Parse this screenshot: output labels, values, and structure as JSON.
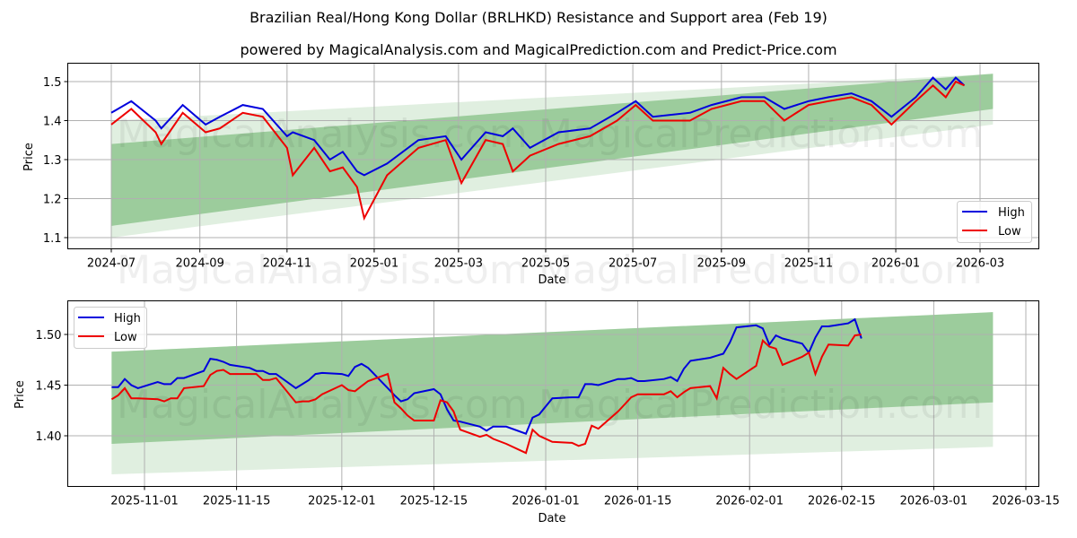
{
  "header": {
    "title": "Brazilian Real/Hong Kong Dollar (BRLHKD) Resistance and Support area (Feb 19)",
    "subtitle": "powered by MagicalAnalysis.com and MagicalPrediction.com and Predict-Price.com"
  },
  "watermarks": [
    "MagicalAnalysis.com",
    "MagicalPrediction.com"
  ],
  "colors": {
    "high": "#0000dd",
    "low": "#ee0000",
    "band_dark": "#8fc58f",
    "band_light": "#cfe6cf",
    "grid": "#b0b0b0"
  },
  "chart_data": [
    {
      "type": "line",
      "title": "",
      "xlabel": "Date",
      "ylabel": "Price",
      "ylim": [
        1.07,
        1.545
      ],
      "grid": true,
      "legend_position": "lower right",
      "x_ticks": [
        "2024-07",
        "2024-09",
        "2024-11",
        "2025-01",
        "2025-03",
        "2025-05",
        "2025-07",
        "2025-09",
        "2025-11",
        "2026-01",
        "2026-03"
      ],
      "y_ticks": [
        "1.1",
        "1.2",
        "1.3",
        "1.4",
        "1.5"
      ],
      "legend": [
        "High",
        "Low"
      ],
      "x": [
        "2024-07-01",
        "2024-07-15",
        "2024-08-01",
        "2024-08-05",
        "2024-08-20",
        "2024-09-05",
        "2024-09-15",
        "2024-10-01",
        "2024-10-15",
        "2024-11-01",
        "2024-11-05",
        "2024-11-20",
        "2024-12-01",
        "2024-12-10",
        "2024-12-20",
        "2024-12-25",
        "2025-01-10",
        "2025-02-01",
        "2025-02-20",
        "2025-03-03",
        "2025-03-20",
        "2025-04-01",
        "2025-04-08",
        "2025-04-20",
        "2025-05-10",
        "2025-06-01",
        "2025-06-20",
        "2025-07-03",
        "2025-07-15",
        "2025-08-10",
        "2025-08-25",
        "2025-09-15",
        "2025-10-01",
        "2025-10-15",
        "2025-11-01",
        "2025-11-15",
        "2025-12-01",
        "2025-12-15",
        "2025-12-29",
        "2026-01-15",
        "2026-01-27",
        "2026-02-05",
        "2026-02-12",
        "2026-02-18"
      ],
      "series": [
        {
          "name": "High",
          "values": [
            1.42,
            1.45,
            1.4,
            1.38,
            1.44,
            1.39,
            1.41,
            1.44,
            1.43,
            1.36,
            1.37,
            1.35,
            1.3,
            1.32,
            1.27,
            1.26,
            1.29,
            1.35,
            1.36,
            1.3,
            1.37,
            1.36,
            1.38,
            1.33,
            1.37,
            1.38,
            1.42,
            1.45,
            1.41,
            1.42,
            1.44,
            1.46,
            1.46,
            1.43,
            1.45,
            1.46,
            1.47,
            1.45,
            1.41,
            1.46,
            1.51,
            1.48,
            1.51,
            1.49
          ]
        },
        {
          "name": "Low",
          "values": [
            1.39,
            1.43,
            1.37,
            1.34,
            1.42,
            1.37,
            1.38,
            1.42,
            1.41,
            1.33,
            1.26,
            1.33,
            1.27,
            1.28,
            1.23,
            1.15,
            1.26,
            1.33,
            1.35,
            1.24,
            1.35,
            1.34,
            1.27,
            1.31,
            1.34,
            1.36,
            1.4,
            1.44,
            1.4,
            1.4,
            1.43,
            1.45,
            1.45,
            1.4,
            1.44,
            1.45,
            1.46,
            1.44,
            1.39,
            1.45,
            1.49,
            1.46,
            1.5,
            1.49
          ]
        }
      ],
      "bands": [
        {
          "name": "resistance-support-outer",
          "x": [
            "2024-07-01",
            "2026-03-10"
          ],
          "upper": [
            1.4,
            1.52
          ],
          "lower": [
            1.1,
            1.39
          ]
        },
        {
          "name": "resistance-support-inner",
          "x": [
            "2024-07-01",
            "2026-03-10"
          ],
          "upper": [
            1.34,
            1.52
          ],
          "lower": [
            1.13,
            1.43
          ]
        }
      ]
    },
    {
      "type": "line",
      "title": "",
      "xlabel": "Date",
      "ylabel": "Price",
      "ylim": [
        1.353,
        1.532
      ],
      "grid": true,
      "legend_position": "upper left",
      "x_ticks": [
        "2025-11-01",
        "2025-11-15",
        "2025-12-01",
        "2025-12-15",
        "2026-01-01",
        "2026-01-15",
        "2026-02-01",
        "2026-02-15",
        "2026-03-01",
        "2026-03-15"
      ],
      "y_ticks": [
        "1.40",
        "1.45",
        "1.50"
      ],
      "legend": [
        "High",
        "Low"
      ],
      "x": [
        "2025-10-27",
        "2025-10-28",
        "2025-10-29",
        "2025-10-30",
        "2025-10-31",
        "2025-11-03",
        "2025-11-04",
        "2025-11-05",
        "2025-11-06",
        "2025-11-07",
        "2025-11-10",
        "2025-11-11",
        "2025-11-12",
        "2025-11-13",
        "2025-11-14",
        "2025-11-17",
        "2025-11-18",
        "2025-11-19",
        "2025-11-20",
        "2025-11-21",
        "2025-11-24",
        "2025-11-25",
        "2025-11-26",
        "2025-11-27",
        "2025-11-28",
        "2025-12-01",
        "2025-12-02",
        "2025-12-03",
        "2025-12-04",
        "2025-12-05",
        "2025-12-08",
        "2025-12-09",
        "2025-12-10",
        "2025-12-11",
        "2025-12-12",
        "2025-12-15",
        "2025-12-16",
        "2025-12-17",
        "2025-12-18",
        "2025-12-19",
        "2025-12-22",
        "2025-12-23",
        "2025-12-24",
        "2025-12-26",
        "2025-12-29",
        "2025-12-30",
        "2025-12-31",
        "2026-01-02",
        "2026-01-05",
        "2026-01-06",
        "2026-01-07",
        "2026-01-08",
        "2026-01-09",
        "2026-01-12",
        "2026-01-13",
        "2026-01-14",
        "2026-01-15",
        "2026-01-16",
        "2026-01-19",
        "2026-01-20",
        "2026-01-21",
        "2026-01-22",
        "2026-01-23",
        "2026-01-26",
        "2026-01-27",
        "2026-01-28",
        "2026-01-29",
        "2026-01-30",
        "2026-02-02",
        "2026-02-03",
        "2026-02-04",
        "2026-02-05",
        "2026-02-06",
        "2026-02-09",
        "2026-02-10",
        "2026-02-11",
        "2026-02-12",
        "2026-02-13",
        "2026-02-16",
        "2026-02-17",
        "2026-02-18"
      ],
      "series": [
        {
          "name": "High",
          "values": [
            1.448,
            1.448,
            1.456,
            1.45,
            1.447,
            1.453,
            1.451,
            1.451,
            1.457,
            1.457,
            1.464,
            1.476,
            1.475,
            1.473,
            1.47,
            1.467,
            1.464,
            1.464,
            1.461,
            1.461,
            1.447,
            1.451,
            1.455,
            1.461,
            1.462,
            1.461,
            1.459,
            1.468,
            1.471,
            1.467,
            1.447,
            1.44,
            1.434,
            1.436,
            1.442,
            1.446,
            1.441,
            1.426,
            1.415,
            1.414,
            1.409,
            1.405,
            1.409,
            1.409,
            1.402,
            1.418,
            1.421,
            1.437,
            1.438,
            1.438,
            1.451,
            1.451,
            1.45,
            1.456,
            1.456,
            1.457,
            1.454,
            1.454,
            1.456,
            1.458,
            1.454,
            1.466,
            1.474,
            1.477,
            1.479,
            1.481,
            1.492,
            1.507,
            1.509,
            1.506,
            1.49,
            1.499,
            1.496,
            1.491,
            1.482,
            1.497,
            1.508,
            1.508,
            1.511,
            1.515,
            1.496
          ]
        },
        {
          "name": "Low",
          "values": [
            1.436,
            1.44,
            1.447,
            1.437,
            1.437,
            1.436,
            1.434,
            1.437,
            1.437,
            1.447,
            1.449,
            1.46,
            1.464,
            1.465,
            1.461,
            1.461,
            1.461,
            1.455,
            1.455,
            1.457,
            1.433,
            1.434,
            1.434,
            1.436,
            1.441,
            1.45,
            1.445,
            1.444,
            1.449,
            1.454,
            1.461,
            1.433,
            1.427,
            1.42,
            1.415,
            1.415,
            1.435,
            1.433,
            1.424,
            1.406,
            1.399,
            1.401,
            1.397,
            1.392,
            1.383,
            1.406,
            1.4,
            1.394,
            1.393,
            1.39,
            1.392,
            1.41,
            1.407,
            1.424,
            1.431,
            1.438,
            1.441,
            1.441,
            1.441,
            1.444,
            1.438,
            1.443,
            1.447,
            1.449,
            1.437,
            1.467,
            1.461,
            1.456,
            1.469,
            1.494,
            1.488,
            1.486,
            1.47,
            1.478,
            1.482,
            1.461,
            1.478,
            1.49,
            1.489,
            1.499,
            1.5
          ]
        }
      ],
      "bands": [
        {
          "name": "resistance-support-outer",
          "x": [
            "2025-10-27",
            "2026-03-10"
          ],
          "upper": [
            1.483,
            1.522
          ],
          "lower": [
            1.362,
            1.389
          ]
        },
        {
          "name": "resistance-support-inner",
          "x": [
            "2025-10-27",
            "2026-03-10"
          ],
          "upper": [
            1.483,
            1.522
          ],
          "lower": [
            1.392,
            1.433
          ]
        }
      ]
    }
  ]
}
